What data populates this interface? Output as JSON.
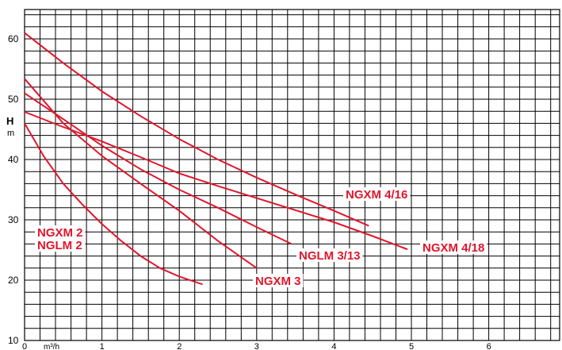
{
  "chart_data": {
    "type": "line",
    "ylabel": "H",
    "ylabel_unit": "m",
    "xlabel": "m³/h",
    "xlim": [
      0,
      7
    ],
    "ylim": [
      10,
      63
    ],
    "x_ticks": [
      0,
      1,
      2,
      3,
      4,
      5,
      6
    ],
    "y_ticks": [
      10,
      20,
      30,
      40,
      50,
      60
    ],
    "grid": true,
    "line_color": "#e1162b",
    "series": [
      {
        "name": "NGXM 4/16",
        "label_lines": [
          "NGXM 4/16"
        ],
        "x": [
          0,
          0.5,
          1.0,
          1.5,
          2.0,
          2.5,
          3.0,
          3.5,
          4.0,
          4.45
        ],
        "y": [
          61.0,
          56.0,
          51.3,
          47.2,
          43.4,
          40.0,
          37.0,
          34.2,
          31.5,
          29.0
        ]
      },
      {
        "name": "NGXM 4/18",
        "label_lines": [
          "NGXM 4/18"
        ],
        "x": [
          0,
          0.5,
          1.0,
          1.5,
          2.0,
          2.5,
          3.0,
          3.5,
          4.0,
          4.5,
          4.95
        ],
        "y": [
          47.9,
          45.4,
          43.0,
          40.4,
          37.7,
          35.6,
          33.6,
          31.6,
          29.6,
          27.3,
          25.1
        ]
      },
      {
        "name": "NGLM 3/13",
        "label_lines": [
          "NGLM 3/13"
        ],
        "x": [
          0,
          0.5,
          1.0,
          1.5,
          2.0,
          2.5,
          3.0,
          3.45
        ],
        "y": [
          51.0,
          46.7,
          42.3,
          38.4,
          35.0,
          32.0,
          28.8,
          26.0
        ]
      },
      {
        "name": "NGXM 3",
        "label_lines": [
          "NGXM 3"
        ],
        "x": [
          0,
          0.5,
          1.0,
          1.5,
          2.0,
          2.5,
          3.0
        ],
        "y": [
          53.4,
          46.0,
          40.6,
          36.0,
          31.5,
          26.5,
          22.0
        ]
      },
      {
        "name": "NGXM 2 / NGLM 2",
        "label_lines": [
          "NGXM 2",
          "NGLM 2"
        ],
        "x": [
          0,
          0.25,
          0.5,
          0.75,
          1.0,
          1.25,
          1.5,
          1.75,
          2.0,
          2.3
        ],
        "y": [
          46.0,
          40.5,
          36.0,
          32.5,
          29.3,
          26.5,
          24.0,
          22.0,
          20.6,
          19.3
        ]
      }
    ]
  }
}
